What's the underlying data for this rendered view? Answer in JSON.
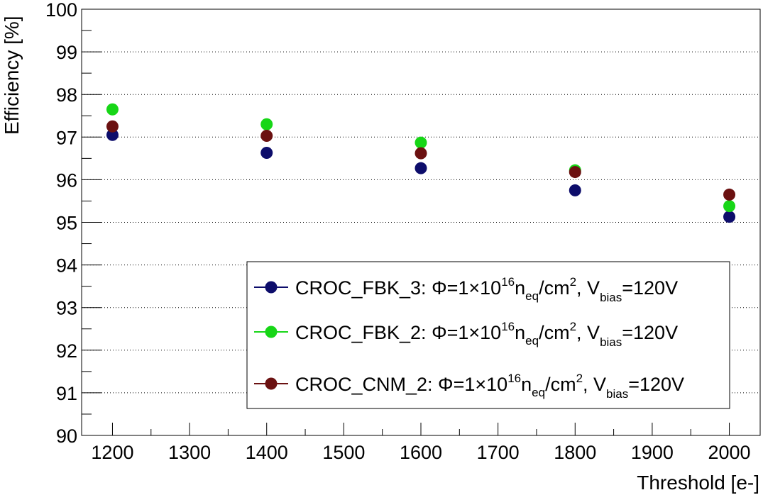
{
  "chart_data": {
    "type": "scatter",
    "xlabel": "Threshold [e-]",
    "ylabel": "Efficiency [%]",
    "xlim": [
      1160,
      2040
    ],
    "ylim": [
      90,
      100
    ],
    "x_ticks": [
      "1200",
      "1300",
      "1400",
      "1500",
      "1600",
      "1700",
      "1800",
      "1900",
      "2000"
    ],
    "y_ticks": [
      "90",
      "91",
      "92",
      "93",
      "94",
      "95",
      "96",
      "97",
      "98",
      "99",
      "100"
    ],
    "grid": "horizontal dotted",
    "legend_position": "bottom-right",
    "series": [
      {
        "label_name": "CROC_FBK_3",
        "label_phi": "Φ=1×10",
        "label_exp": "16",
        "label_n": "n",
        "label_eq": "eq",
        "label_cm": "/cm",
        "label_two": "2",
        "label_v": ", V",
        "label_bias": "bias",
        "label_end": "=120V",
        "color": "#0d0d6b",
        "x": [
          1200,
          1400,
          1600,
          1800,
          2000
        ],
        "y": [
          97.05,
          96.63,
          96.27,
          95.75,
          95.13
        ]
      },
      {
        "label_name": "CROC_FBK_2",
        "label_phi": "Φ=1×10",
        "label_exp": "16",
        "label_n": "n",
        "label_eq": "eq",
        "label_cm": "/cm",
        "label_two": "2",
        "label_v": ", V",
        "label_bias": "bias",
        "label_end": "=120V",
        "color": "#17d617",
        "x": [
          1200,
          1400,
          1600,
          1800,
          2000
        ],
        "y": [
          97.65,
          97.3,
          96.87,
          96.22,
          95.38
        ]
      },
      {
        "label_name": "CROC_CNM_2",
        "label_phi": "Φ=1×10",
        "label_exp": "16",
        "label_n": "n",
        "label_eq": "eq",
        "label_cm": "/cm",
        "label_two": "2",
        "label_v": ", V",
        "label_bias": "bias",
        "label_end": "=120V",
        "color": "#6b1111",
        "x": [
          1200,
          1400,
          1600,
          1800,
          2000
        ],
        "y": [
          97.25,
          97.03,
          96.62,
          96.18,
          95.65
        ]
      }
    ]
  }
}
